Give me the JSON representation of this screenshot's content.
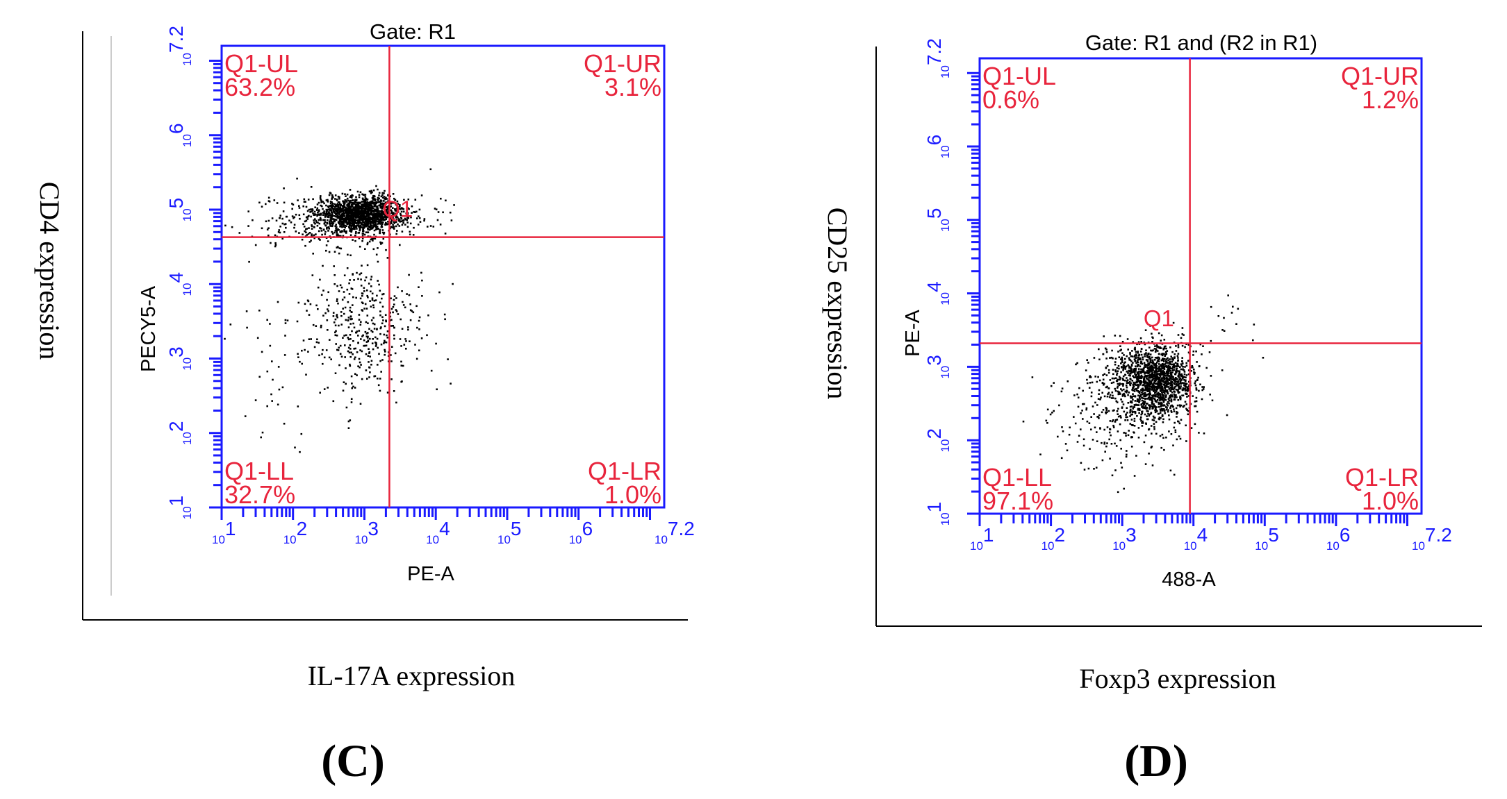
{
  "chart_data": [
    {
      "type": "scatter",
      "panel_label": "(C)",
      "title": "Gate: R1",
      "xlabel": "PE-A",
      "ylabel": "PECY5-A",
      "outer_xlabel": "IL-17A  expression",
      "outer_ylabel": "CD4  expression",
      "xlim": [
        1,
        7.2
      ],
      "ylim": [
        1,
        7.2
      ],
      "x_ticks": [
        {
          "base": "10",
          "exp": "1",
          "value": 1
        },
        {
          "base": "10",
          "exp": "2",
          "value": 2
        },
        {
          "base": "10",
          "exp": "3",
          "value": 3
        },
        {
          "base": "10",
          "exp": "4",
          "value": 4
        },
        {
          "base": "10",
          "exp": "5",
          "value": 5
        },
        {
          "base": "10",
          "exp": "6",
          "value": 6
        },
        {
          "base": "10",
          "exp": "7.2",
          "value": 7.2
        }
      ],
      "y_ticks": [
        {
          "base": "10",
          "exp": "1",
          "value": 1
        },
        {
          "base": "10",
          "exp": "2",
          "value": 2
        },
        {
          "base": "10",
          "exp": "3",
          "value": 3
        },
        {
          "base": "10",
          "exp": "4",
          "value": 4
        },
        {
          "base": "10",
          "exp": "5",
          "value": 5
        },
        {
          "base": "10",
          "exp": "6",
          "value": 6
        },
        {
          "base": "10",
          "exp": "7.2",
          "value": 7.2
        }
      ],
      "gate_x": 3.35,
      "gate_y": 4.63,
      "gate_name": "Q1",
      "gate_name_pos": [
        3.25,
        4.9
      ],
      "quadrants": {
        "UL": {
          "name": "Q1-UL",
          "percent": "63.2%"
        },
        "UR": {
          "name": "Q1-UR",
          "percent": "3.1%"
        },
        "LL": {
          "name": "Q1-LL",
          "percent": "32.7%"
        },
        "LR": {
          "name": "Q1-LR",
          "percent": "1.0%"
        }
      },
      "clusters": [
        {
          "cx": 2.95,
          "cy": 4.95,
          "sx": 0.3,
          "sy": 0.12,
          "n": 1500
        },
        {
          "cx": 2.4,
          "cy": 4.85,
          "sx": 0.55,
          "sy": 0.2,
          "n": 250
        },
        {
          "cx": 3.0,
          "cy": 3.45,
          "sx": 0.4,
          "sy": 0.4,
          "n": 380
        },
        {
          "cx": 2.2,
          "cy": 3.0,
          "sx": 0.6,
          "sy": 0.7,
          "n": 90
        },
        {
          "cx": 3.6,
          "cy": 4.9,
          "sx": 0.35,
          "sy": 0.22,
          "n": 45
        }
      ],
      "colors": {
        "dots": "#000000",
        "axes": "#1a1aff",
        "gate": "#e8243c"
      }
    },
    {
      "type": "scatter",
      "panel_label": "(D)",
      "title": "Gate: R1 and (R2 in R1)",
      "xlabel": "488-A",
      "ylabel": "PE-A",
      "outer_xlabel": "Foxp3  expression",
      "outer_ylabel": "CD25  expression",
      "xlim": [
        1,
        7.2
      ],
      "ylim": [
        1,
        7.2
      ],
      "x_ticks": [
        {
          "base": "10",
          "exp": "1",
          "value": 1
        },
        {
          "base": "10",
          "exp": "2",
          "value": 2
        },
        {
          "base": "10",
          "exp": "3",
          "value": 3
        },
        {
          "base": "10",
          "exp": "4",
          "value": 4
        },
        {
          "base": "10",
          "exp": "5",
          "value": 5
        },
        {
          "base": "10",
          "exp": "6",
          "value": 6
        },
        {
          "base": "10",
          "exp": "7.2",
          "value": 7.2
        }
      ],
      "y_ticks": [
        {
          "base": "10",
          "exp": "1",
          "value": 1
        },
        {
          "base": "10",
          "exp": "2",
          "value": 2
        },
        {
          "base": "10",
          "exp": "3",
          "value": 3
        },
        {
          "base": "10",
          "exp": "4",
          "value": 4
        },
        {
          "base": "10",
          "exp": "5",
          "value": 5
        },
        {
          "base": "10",
          "exp": "6",
          "value": 6
        },
        {
          "base": "10",
          "exp": "7.2",
          "value": 7.2
        }
      ],
      "gate_x": 3.95,
      "gate_y": 3.32,
      "gate_name": "Q1",
      "gate_name_pos": [
        3.3,
        3.55
      ],
      "quadrants": {
        "UL": {
          "name": "Q1-UL",
          "percent": "0.6%"
        },
        "UR": {
          "name": "Q1-UR",
          "percent": "1.2%"
        },
        "LL": {
          "name": "Q1-LL",
          "percent": "97.1%"
        },
        "LR": {
          "name": "Q1-LR",
          "percent": "1.0%"
        }
      },
      "clusters": [
        {
          "cx": 3.45,
          "cy": 2.82,
          "sx": 0.28,
          "sy": 0.25,
          "n": 1500
        },
        {
          "cx": 3.0,
          "cy": 2.4,
          "sx": 0.45,
          "sy": 0.4,
          "n": 250
        },
        {
          "cx": 2.4,
          "cy": 2.3,
          "sx": 0.5,
          "sy": 0.35,
          "n": 40
        },
        {
          "cx": 4.45,
          "cy": 3.6,
          "sx": 0.25,
          "sy": 0.25,
          "n": 14
        }
      ],
      "colors": {
        "dots": "#000000",
        "axes": "#1a1aff",
        "gate": "#e8243c"
      }
    }
  ]
}
